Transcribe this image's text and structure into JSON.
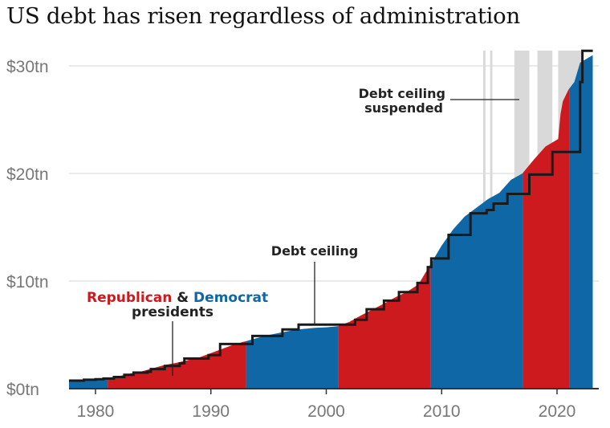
{
  "chart_data": {
    "type": "area",
    "title": "US debt has risen regardless of administration",
    "xlabel": "",
    "ylabel": "",
    "xlim": [
      1977.7,
      2023.1
    ],
    "ylim": [
      0,
      31.5
    ],
    "x_ticks": [
      1980,
      1990,
      2000,
      2010,
      2020
    ],
    "x_tick_labels": [
      "1980",
      "1990",
      "2000",
      "2010",
      "2020"
    ],
    "y_ticks": [
      0,
      10,
      20,
      30
    ],
    "y_tick_labels": [
      "$0tn",
      "$10tn",
      "$20tn",
      "$30tn"
    ],
    "grid": "horizontal",
    "colors": {
      "republican": "#cc1a1e",
      "democrat": "#0f67a5",
      "suspended": "#d9d9d9",
      "ceiling": "#1a1a1a",
      "grid": "#dddddd"
    },
    "debt": {
      "x": [
        1977.7,
        1980,
        1981,
        1982,
        1983,
        1984,
        1985,
        1986,
        1987,
        1988,
        1989,
        1990,
        1991,
        1992,
        1993,
        1994,
        1995,
        1996,
        1997,
        1998,
        1999,
        2000,
        2001,
        2002,
        2003,
        2004,
        2005,
        2006,
        2007,
        2008,
        2009,
        2010,
        2011,
        2012,
        2013,
        2014,
        2015,
        2016,
        2017,
        2018,
        2019,
        2020.1,
        2020.3,
        2020.5,
        2021,
        2021.5,
        2022,
        2023.1
      ],
      "y": [
        0.7,
        0.9,
        1.0,
        1.15,
        1.4,
        1.6,
        1.9,
        2.2,
        2.4,
        2.65,
        2.9,
        3.3,
        3.7,
        4.1,
        4.4,
        4.7,
        4.98,
        5.2,
        5.4,
        5.55,
        5.65,
        5.7,
        5.8,
        6.2,
        6.8,
        7.35,
        7.9,
        8.5,
        9.0,
        9.7,
        11.5,
        13.3,
        14.8,
        16.0,
        16.8,
        17.6,
        18.2,
        19.4,
        20.0,
        21.3,
        22.5,
        23.2,
        25.5,
        26.7,
        27.8,
        28.5,
        30.3,
        31.0
      ]
    },
    "debt_ceiling": {
      "x": [
        1977.7,
        1979,
        1980,
        1980.7,
        1981.6,
        1982.5,
        1983.3,
        1984.5,
        1984.8,
        1986,
        1987.3,
        1987.7,
        1989.8,
        1990.8,
        1993.6,
        1996.2,
        1997.6,
        2002.5,
        2003.5,
        2005.0,
        2006.3,
        2007.9,
        2008.8,
        2009.1,
        2010.6,
        2012.5,
        2013.9,
        2014.5,
        2015.7,
        2017.6,
        2019.6,
        2022.0,
        2022.2,
        2023.1
      ],
      "y": [
        0.75,
        0.83,
        0.88,
        0.94,
        1.08,
        1.29,
        1.49,
        1.57,
        1.82,
        2.11,
        2.35,
        2.8,
        3.12,
        4.15,
        4.9,
        5.5,
        5.95,
        6.4,
        7.38,
        8.18,
        8.97,
        9.82,
        11.3,
        12.1,
        14.29,
        16.3,
        16.6,
        17.2,
        18.1,
        19.9,
        22.0,
        28.5,
        31.4,
        31.4
      ]
    },
    "presidencies": [
      {
        "party": "democrat",
        "start": 1977.7,
        "end": 1981.05
      },
      {
        "party": "republican",
        "start": 1981.05,
        "end": 1993.05
      },
      {
        "party": "democrat",
        "start": 1993.05,
        "end": 2001.05
      },
      {
        "party": "republican",
        "start": 2001.05,
        "end": 2009.05
      },
      {
        "party": "democrat",
        "start": 2009.05,
        "end": 2017.05
      },
      {
        "party": "republican",
        "start": 2017.05,
        "end": 2021.05
      },
      {
        "party": "democrat",
        "start": 2021.05,
        "end": 2023.1
      }
    ],
    "suspended_periods": [
      [
        2013.6,
        2013.8
      ],
      [
        2014.2,
        2014.4
      ],
      [
        2016.3,
        2017.6
      ],
      [
        2018.3,
        2019.6
      ],
      [
        2020.1,
        2022.1
      ]
    ],
    "annotations": {
      "debt_ceiling": "Debt ceiling",
      "suspended_line1": "Debt ceiling",
      "suspended_line2": "suspended",
      "republican": "Republican",
      "amp": "&",
      "democrat": "Democrat",
      "presidents": "presidents"
    }
  }
}
